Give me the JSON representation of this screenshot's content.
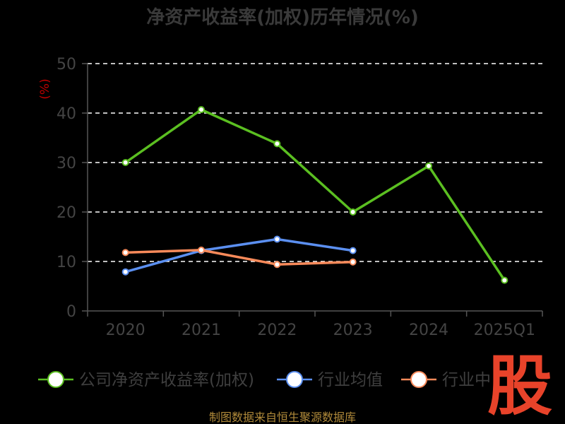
{
  "chart_data": {
    "type": "line",
    "title": "净资产收益率(加权)历年情况(%)",
    "ylabel": "(%)",
    "categories": [
      "2020",
      "2021",
      "2022",
      "2023",
      "2024",
      "2025Q1"
    ],
    "ylim": [
      0,
      50
    ],
    "yticks": [
      "0",
      "10",
      "20",
      "30",
      "40",
      "50"
    ],
    "grid": true,
    "legend_position": "bottom",
    "series": [
      {
        "name": "公司净资产收益率(加权)",
        "color": "#5bbf21",
        "values": [
          30.0,
          40.7,
          33.8,
          20.0,
          29.3,
          6.2
        ]
      },
      {
        "name": "行业均值",
        "color": "#5b8ff0",
        "values": [
          7.9,
          12.2,
          14.5,
          12.2,
          null,
          null
        ]
      },
      {
        "name": "行业中位数",
        "color": "#f88a5a",
        "values": [
          11.8,
          12.3,
          9.4,
          9.9,
          null,
          null
        ]
      }
    ]
  },
  "legend_visible": [
    "公司净资产收益率(加权)",
    "行业均值",
    "行业中"
  ],
  "source": "制图数据来自恒生聚源数据库",
  "brand": "股"
}
